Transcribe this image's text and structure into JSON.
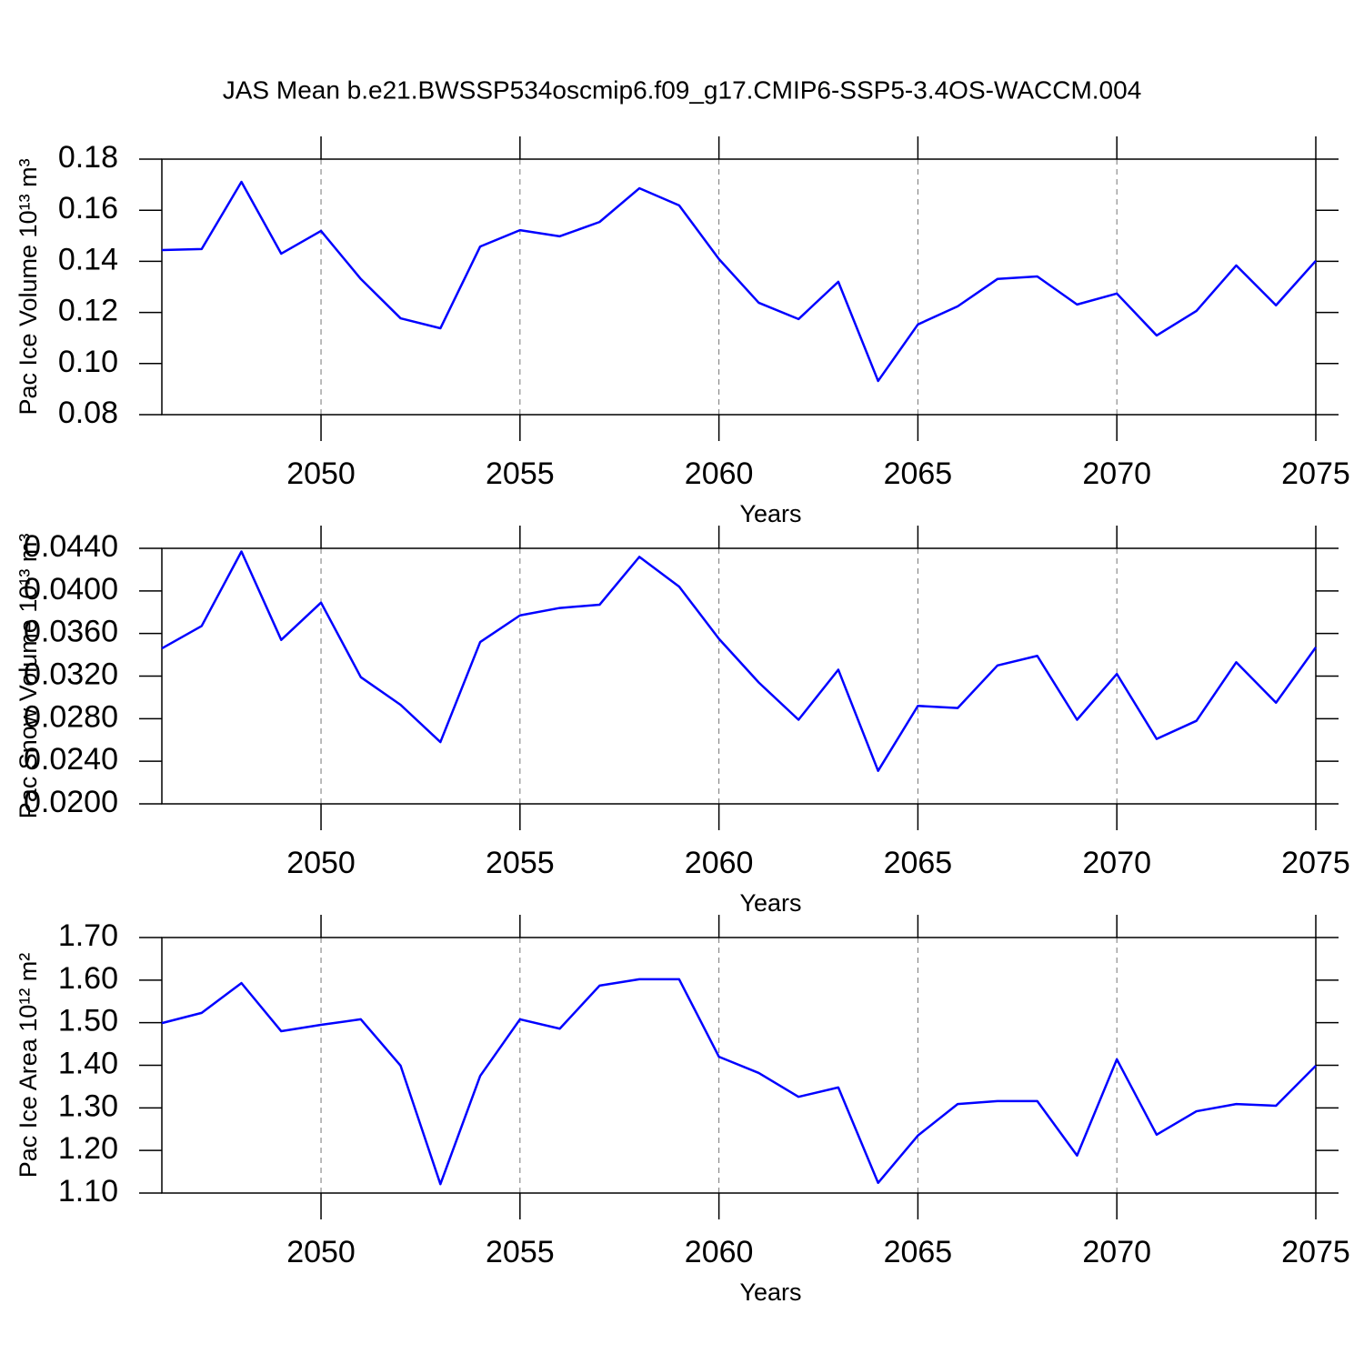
{
  "title": "JAS Mean b.e21.BWSSP534oscmip6.f09_g17.CMIP6-SSP5-3.4OS-WACCM.004",
  "chart_data": [
    {
      "type": "line",
      "ylabel": "Pac Ice Volume 10¹³ m³",
      "xlabel": "Years",
      "x": [
        2046,
        2047,
        2048,
        2049,
        2050,
        2051,
        2052,
        2053,
        2054,
        2055,
        2056,
        2057,
        2058,
        2059,
        2060,
        2061,
        2062,
        2063,
        2064,
        2065,
        2066,
        2067,
        2068,
        2069,
        2070,
        2071,
        2072,
        2073,
        2074,
        2075
      ],
      "values": [
        0.1444,
        0.1448,
        0.1711,
        0.143,
        0.1519,
        0.1331,
        0.1177,
        0.1138,
        0.1458,
        0.1522,
        0.1498,
        0.1554,
        0.1686,
        0.1619,
        0.1409,
        0.1238,
        0.1174,
        0.132,
        0.0932,
        0.1153,
        0.1224,
        0.1331,
        0.1341,
        0.1231,
        0.1274,
        0.111,
        0.1206,
        0.1384,
        0.1228,
        0.1402
      ],
      "color": "#0000ff",
      "xlim": [
        2046,
        2075
      ],
      "xticks": [
        2050,
        2055,
        2060,
        2065,
        2070,
        2075
      ],
      "ylim": [
        0.08,
        0.18
      ],
      "yticks": [
        0.08,
        {
          "value": 0.1,
          "label": "0.10"
        },
        0.12,
        0.14,
        0.16,
        0.18
      ],
      "grid": "x"
    },
    {
      "type": "line",
      "ylabel": "Pac Snow Volume 10¹³ m³",
      "xlabel": "Years",
      "x": [
        2046,
        2047,
        2048,
        2049,
        2050,
        2051,
        2052,
        2053,
        2054,
        2055,
        2056,
        2057,
        2058,
        2059,
        2060,
        2061,
        2062,
        2063,
        2064,
        2065,
        2066,
        2067,
        2068,
        2069,
        2070,
        2071,
        2072,
        2073,
        2074,
        2075
      ],
      "values": [
        0.0346,
        0.0367,
        0.0437,
        0.0354,
        0.0389,
        0.0319,
        0.0293,
        0.0258,
        0.0352,
        0.0377,
        0.0384,
        0.0387,
        0.0432,
        0.0404,
        0.0355,
        0.0314,
        0.0279,
        0.0326,
        0.0231,
        0.0292,
        0.029,
        0.033,
        0.0339,
        0.0279,
        0.0322,
        0.0261,
        0.0278,
        0.0333,
        0.0295,
        0.0347
      ],
      "color": "#0000ff",
      "xlim": [
        2046,
        2075
      ],
      "xticks": [
        2050,
        2055,
        2060,
        2065,
        2070,
        2075
      ],
      "ylim": [
        0.02,
        0.044
      ],
      "yticks": [
        {
          "value": 0.02,
          "label": "0.0200"
        },
        {
          "value": 0.024,
          "label": "0.0240"
        },
        {
          "value": 0.028,
          "label": "0.0280"
        },
        {
          "value": 0.032,
          "label": "0.0320"
        },
        {
          "value": 0.036,
          "label": "0.0360"
        },
        {
          "value": 0.04,
          "label": "0.0400"
        },
        {
          "value": 0.044,
          "label": "0.0440"
        }
      ],
      "grid": "x"
    },
    {
      "type": "line",
      "ylabel": "Pac Ice Area 10¹² m²",
      "xlabel": "Years",
      "x": [
        2046,
        2047,
        2048,
        2049,
        2050,
        2051,
        2052,
        2053,
        2054,
        2055,
        2056,
        2057,
        2058,
        2059,
        2060,
        2061,
        2062,
        2063,
        2064,
        2065,
        2066,
        2067,
        2068,
        2069,
        2070,
        2071,
        2072,
        2073,
        2074,
        2075
      ],
      "values": [
        1.499,
        1.523,
        1.593,
        1.48,
        1.495,
        1.508,
        1.399,
        1.121,
        1.375,
        1.508,
        1.486,
        1.587,
        1.602,
        1.602,
        1.42,
        1.382,
        1.326,
        1.348,
        1.124,
        1.235,
        1.309,
        1.316,
        1.316,
        1.188,
        1.414,
        1.237,
        1.292,
        1.309,
        1.305,
        1.399
      ],
      "color": "#0000ff",
      "xlim": [
        2046,
        2075
      ],
      "xticks": [
        2050,
        2055,
        2060,
        2065,
        2070,
        2075
      ],
      "ylim": [
        1.1,
        1.7
      ],
      "yticks": [
        {
          "value": 1.1,
          "label": "1.10"
        },
        {
          "value": 1.2,
          "label": "1.20"
        },
        {
          "value": 1.3,
          "label": "1.30"
        },
        {
          "value": 1.4,
          "label": "1.40"
        },
        {
          "value": 1.5,
          "label": "1.50"
        },
        {
          "value": 1.6,
          "label": "1.60"
        },
        {
          "value": 1.7,
          "label": "1.70"
        }
      ],
      "grid": "x"
    }
  ]
}
